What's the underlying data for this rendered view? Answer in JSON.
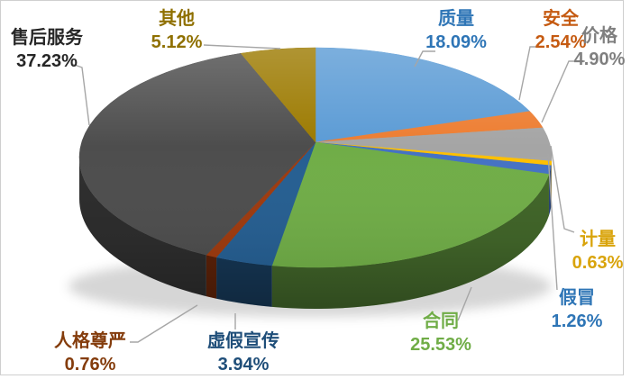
{
  "chart_data": {
    "type": "pie",
    "style": "3d",
    "title": "",
    "legend": "none",
    "labels_outside": true,
    "direction": "clockwise",
    "start_angle_deg": 0,
    "unit": "%",
    "slices": [
      {
        "label": "质量",
        "value": 18.09,
        "pct_label": "18.09%",
        "color": "#5B9BD5",
        "label_color": "#2E75B6"
      },
      {
        "label": "安全",
        "value": 2.54,
        "pct_label": "2.54%",
        "color": "#ED7D31",
        "label_color": "#C55A11"
      },
      {
        "label": "价格",
        "value": 4.9,
        "pct_label": "4.90%",
        "color": "#A5A5A5",
        "label_color": "#7F7F7F"
      },
      {
        "label": "计量",
        "value": 0.63,
        "pct_label": "0.63%",
        "color": "#FFC000",
        "label_color": "#D9A40C"
      },
      {
        "label": "假冒",
        "value": 1.26,
        "pct_label": "1.26%",
        "color": "#4472C4",
        "label_color": "#2E75B6"
      },
      {
        "label": "合同",
        "value": 25.53,
        "pct_label": "25.53%",
        "color": "#70AD47",
        "label_color": "#70AD47"
      },
      {
        "label": "虚假宣传",
        "value": 3.94,
        "pct_label": "3.94%",
        "color": "#255E91",
        "label_color": "#1F4E79"
      },
      {
        "label": "人格尊严",
        "value": 0.76,
        "pct_label": "0.76%",
        "color": "#9E3A0E",
        "label_color": "#843C0C"
      },
      {
        "label": "售后服务",
        "value": 37.23,
        "pct_label": "37.23%",
        "color": "#4D4D4D",
        "label_color": "#262626"
      },
      {
        "label": "其他",
        "value": 5.12,
        "pct_label": "5.12%",
        "color": "#9C7A00",
        "label_color": "#8F7000"
      }
    ],
    "leader_line_color": "#A6A6A6",
    "frame_border_color": "#CFCFCF",
    "background_color": "#FFFFFF"
  }
}
